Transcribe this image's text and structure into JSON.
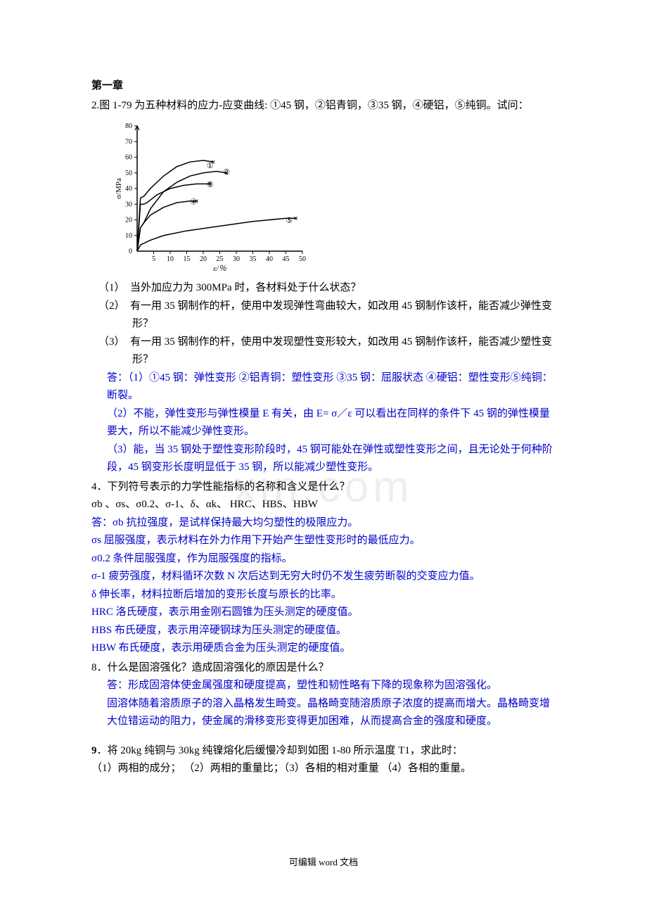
{
  "chapter": {
    "title": "第一章",
    "intro": "2.图 1-79 为五种材料的应力-应变曲线: ①45 钢，②铝青铜，③35 钢，④硬铝，⑤纯铜。试问："
  },
  "chart": {
    "type": "line",
    "xlabel": "ε/％",
    "ylabel": "σ/MPa",
    "xlim": [
      0,
      50
    ],
    "ylim": [
      0,
      80
    ],
    "xtick_step": 5,
    "ytick_step": 10,
    "background_color": "#ffffff",
    "axis_color": "#000000",
    "line_color": "#000000",
    "line_width": 1.5,
    "tick_fontsize": 10,
    "label_fontsize": 11,
    "curves": [
      {
        "label": "①",
        "label_pos": {
          "x": 21,
          "y": 53
        },
        "points": [
          [
            1,
            34
          ],
          [
            2,
            35
          ],
          [
            4,
            40
          ],
          [
            8,
            48
          ],
          [
            12,
            54
          ],
          [
            16,
            57
          ],
          [
            20,
            58
          ],
          [
            23,
            57
          ]
        ]
      },
      {
        "label": "②",
        "label_pos": {
          "x": 26,
          "y": 49
        },
        "points": [
          [
            1,
            15
          ],
          [
            2,
            18
          ],
          [
            4,
            27
          ],
          [
            8,
            38
          ],
          [
            12,
            44
          ],
          [
            16,
            48
          ],
          [
            20,
            50
          ],
          [
            24,
            51
          ],
          [
            27,
            50
          ]
        ]
      },
      {
        "label": "③",
        "label_pos": {
          "x": 21,
          "y": 41
        },
        "points": [
          [
            1,
            30
          ],
          [
            2,
            30
          ],
          [
            3,
            31
          ],
          [
            6,
            36
          ],
          [
            10,
            40
          ],
          [
            14,
            42
          ],
          [
            18,
            43
          ],
          [
            22,
            43
          ]
        ]
      },
      {
        "label": "④",
        "label_pos": {
          "x": 16,
          "y": 30
        },
        "points": [
          [
            1,
            15
          ],
          [
            2,
            18
          ],
          [
            4,
            23
          ],
          [
            8,
            28
          ],
          [
            12,
            31
          ],
          [
            16,
            32
          ],
          [
            18,
            32
          ]
        ]
      },
      {
        "label": "⑤",
        "label_pos": {
          "x": 45,
          "y": 18
        },
        "points": [
          [
            1,
            4
          ],
          [
            4,
            7
          ],
          [
            8,
            10
          ],
          [
            15,
            13
          ],
          [
            25,
            16
          ],
          [
            35,
            19
          ],
          [
            45,
            21
          ],
          [
            48,
            21
          ]
        ]
      }
    ]
  },
  "questions": {
    "q1": {
      "num": "（1）",
      "text": "当外加应力为 300MPa 时，各材料处于什么状态？"
    },
    "q2": {
      "num": "（2）",
      "text": "有一用 35 钢制作的杆，使用中发现弹性弯曲较大，如改用 45 钢制作该杆，能否减少弹性变形？"
    },
    "q3": {
      "num": "（3）",
      "text": "有一用 35 钢制作的杆，使用中发现塑性变形较大，如改用 45 钢制作该杆，能否减少塑性变形？"
    }
  },
  "answers": {
    "a1": "答：（1）①45 钢：弹性变形  ②铝青铜：塑性变形  ③35 钢：屈服状态  ④硬铝：塑性变形⑤纯铜：断裂。",
    "a2": "（2）不能，弹性变形与弹性模量 E 有关，由 E= σ／ε 可以看出在同样的条件下 45 钢的弹性模量要大，所以不能减少弹性变形。",
    "a3": "（3）能，当 35 钢处于塑性变形阶段时，45 钢可能处在弹性或塑性变形之间，且无论处于何种阶段，45 钢变形长度明显低于 35 钢，所以能减少塑性变形。"
  },
  "q4": {
    "header": "4．下列符号表示的力学性能指标的名称和含义是什么？",
    "symbols": "σb 、σs、σ0.2、σ-1、δ、αk、  HRC、HBS、HBW",
    "answers": [
      "答：σb 抗拉强度，是试样保持最大均匀塑性的极限应力。",
      "σs 屈服强度，表示材料在外力作用下开始产生塑性变形时的最低应力。",
      "σ0.2 条件屈服强度，作为屈服强度的指标。",
      "σ-1 疲劳强度，材料循环次数 N 次后达到无穷大时仍不发生疲劳断裂的交变应力值。",
      " δ 伸长率，材料拉断后增加的变形长度与原长的比率。",
      "HRC 洛氏硬度，表示用金刚石圆锥为压头测定的硬度值。",
      "HBS 布氏硬度，表示用淬硬钢球为压头测定的硬度值。",
      "HBW 布氏硬度，表示用硬质合金为压头测定的硬度值。"
    ]
  },
  "q8": {
    "header": "8．什么是固溶强化？造成固溶强化的原因是什么？",
    "a1": "答：形成固溶体使金属强度和硬度提高，塑性和韧性略有下降的现象称为固溶强化。",
    "a2": "固溶体随着溶质原子的溶入晶格发生畸变。晶格畸变随溶质原子浓度的提高而增大。晶格畸变增大位错运动的阻力，使金属的滑移变形变得更加困难，从而提高合金的强度和硬度。"
  },
  "q9": {
    "header": "9．将 20kg 纯铜与 30kg 纯镍熔化后缓慢冷却到如图 1-80 所示温度 T1，求此时：",
    "sub": "（1）两相的成分；  （2）两相的重量比；（3）各相的相对重量  （4）各相的重量。"
  },
  "footer": "可编辑 word 文档",
  "watermark": "xin.com"
}
